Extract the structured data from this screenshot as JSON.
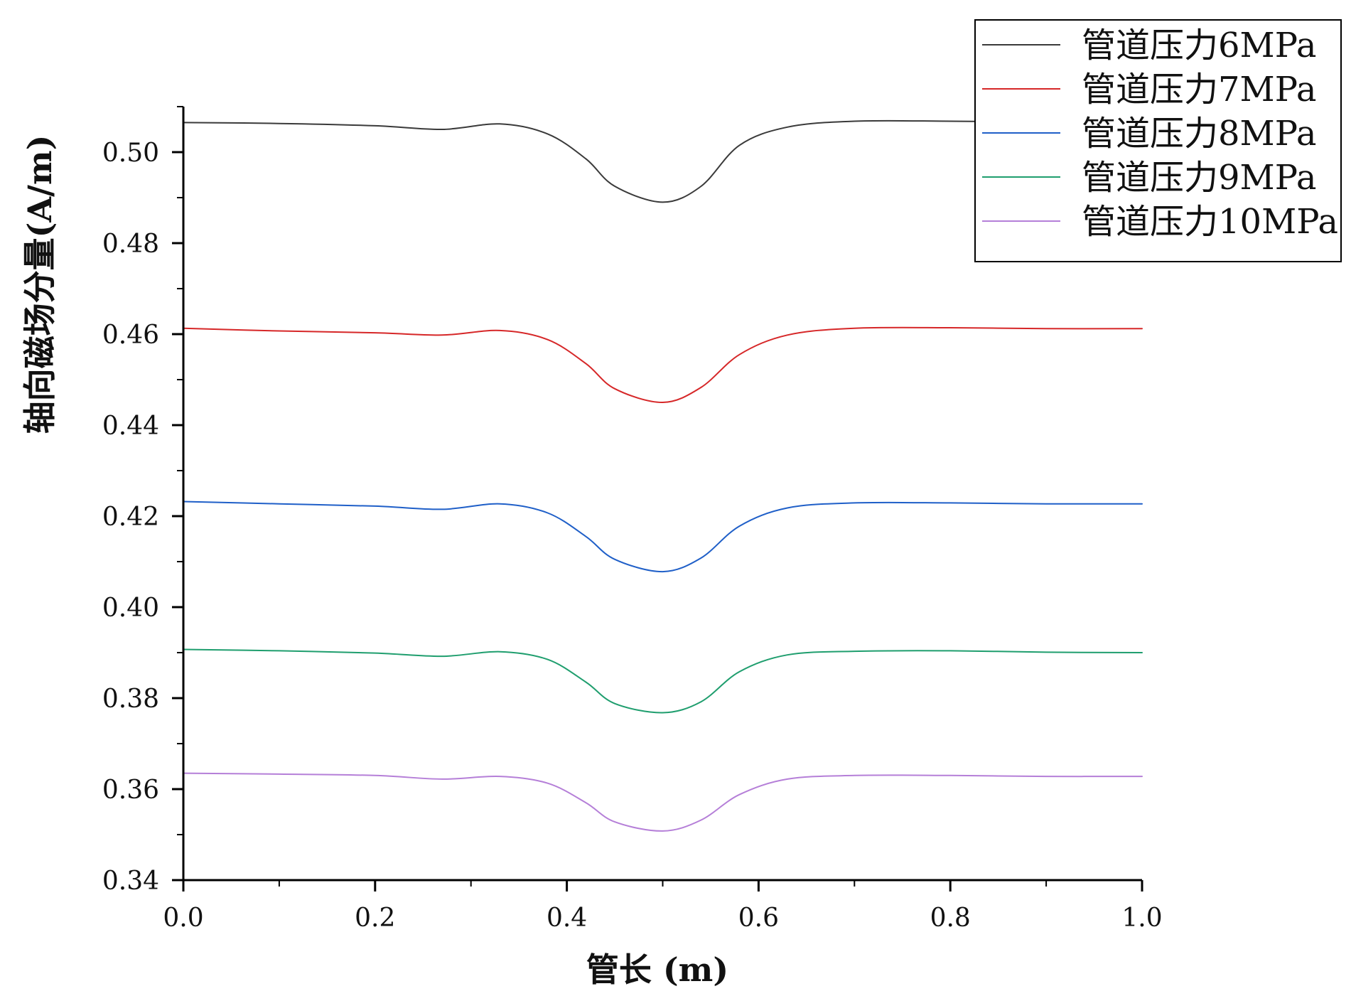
{
  "chart_data": {
    "type": "line",
    "xlabel": "管长 (m)",
    "ylabel": "轴向磁场分量(A/m)",
    "xlim": [
      0.0,
      1.0
    ],
    "ylim": [
      0.34,
      0.51
    ],
    "xticks": [
      "0.0",
      "0.2",
      "0.4",
      "0.6",
      "0.8",
      "1.0"
    ],
    "yticks": [
      "0.34",
      "0.36",
      "0.38",
      "0.40",
      "0.42",
      "0.44",
      "0.46",
      "0.48",
      "0.50"
    ],
    "grid": false,
    "legend_position": "top-right",
    "series": [
      {
        "name": "管道压力6MPa",
        "color": "#3a3a3a",
        "points": [
          [
            0.0,
            0.5065
          ],
          [
            0.1,
            0.5063
          ],
          [
            0.2,
            0.5058
          ],
          [
            0.27,
            0.505
          ],
          [
            0.33,
            0.5062
          ],
          [
            0.38,
            0.504
          ],
          [
            0.42,
            0.4985
          ],
          [
            0.45,
            0.4925
          ],
          [
            0.5,
            0.489
          ],
          [
            0.54,
            0.4925
          ],
          [
            0.58,
            0.5015
          ],
          [
            0.63,
            0.5055
          ],
          [
            0.7,
            0.5068
          ],
          [
            0.8,
            0.5068
          ],
          [
            0.9,
            0.5066
          ],
          [
            1.0,
            0.5065
          ]
        ]
      },
      {
        "name": "管道压力7MPa",
        "color": "#d62728",
        "points": [
          [
            0.0,
            0.4613
          ],
          [
            0.1,
            0.4607
          ],
          [
            0.2,
            0.4603
          ],
          [
            0.27,
            0.4598
          ],
          [
            0.33,
            0.4608
          ],
          [
            0.38,
            0.4588
          ],
          [
            0.42,
            0.4535
          ],
          [
            0.45,
            0.448
          ],
          [
            0.5,
            0.445
          ],
          [
            0.54,
            0.4483
          ],
          [
            0.58,
            0.4555
          ],
          [
            0.63,
            0.4598
          ],
          [
            0.7,
            0.4613
          ],
          [
            0.8,
            0.4614
          ],
          [
            0.9,
            0.4612
          ],
          [
            1.0,
            0.4612
          ]
        ]
      },
      {
        "name": "管道压力8MPa",
        "color": "#1f5fc8",
        "points": [
          [
            0.0,
            0.4232
          ],
          [
            0.1,
            0.4227
          ],
          [
            0.2,
            0.4222
          ],
          [
            0.27,
            0.4215
          ],
          [
            0.33,
            0.4227
          ],
          [
            0.38,
            0.4207
          ],
          [
            0.42,
            0.4155
          ],
          [
            0.45,
            0.4105
          ],
          [
            0.5,
            0.4078
          ],
          [
            0.54,
            0.4108
          ],
          [
            0.58,
            0.4178
          ],
          [
            0.63,
            0.4218
          ],
          [
            0.7,
            0.4229
          ],
          [
            0.8,
            0.4229
          ],
          [
            0.9,
            0.4227
          ],
          [
            1.0,
            0.4227
          ]
        ]
      },
      {
        "name": "管道压力9MPa",
        "color": "#1f9e6e",
        "points": [
          [
            0.0,
            0.3907
          ],
          [
            0.1,
            0.3904
          ],
          [
            0.2,
            0.3899
          ],
          [
            0.27,
            0.3892
          ],
          [
            0.33,
            0.3902
          ],
          [
            0.38,
            0.3885
          ],
          [
            0.42,
            0.3835
          ],
          [
            0.45,
            0.3788
          ],
          [
            0.5,
            0.3768
          ],
          [
            0.54,
            0.3792
          ],
          [
            0.58,
            0.3858
          ],
          [
            0.63,
            0.3895
          ],
          [
            0.7,
            0.3903
          ],
          [
            0.8,
            0.3904
          ],
          [
            0.9,
            0.3901
          ],
          [
            1.0,
            0.39
          ]
        ]
      },
      {
        "name": "管道压力10MPa",
        "color": "#b57fd8",
        "points": [
          [
            0.0,
            0.3635
          ],
          [
            0.1,
            0.3633
          ],
          [
            0.2,
            0.363
          ],
          [
            0.27,
            0.3622
          ],
          [
            0.33,
            0.3628
          ],
          [
            0.38,
            0.3613
          ],
          [
            0.42,
            0.357
          ],
          [
            0.45,
            0.3528
          ],
          [
            0.5,
            0.3508
          ],
          [
            0.54,
            0.3532
          ],
          [
            0.58,
            0.3588
          ],
          [
            0.63,
            0.3622
          ],
          [
            0.7,
            0.363
          ],
          [
            0.8,
            0.363
          ],
          [
            0.9,
            0.3628
          ],
          [
            1.0,
            0.3628
          ]
        ]
      }
    ]
  }
}
